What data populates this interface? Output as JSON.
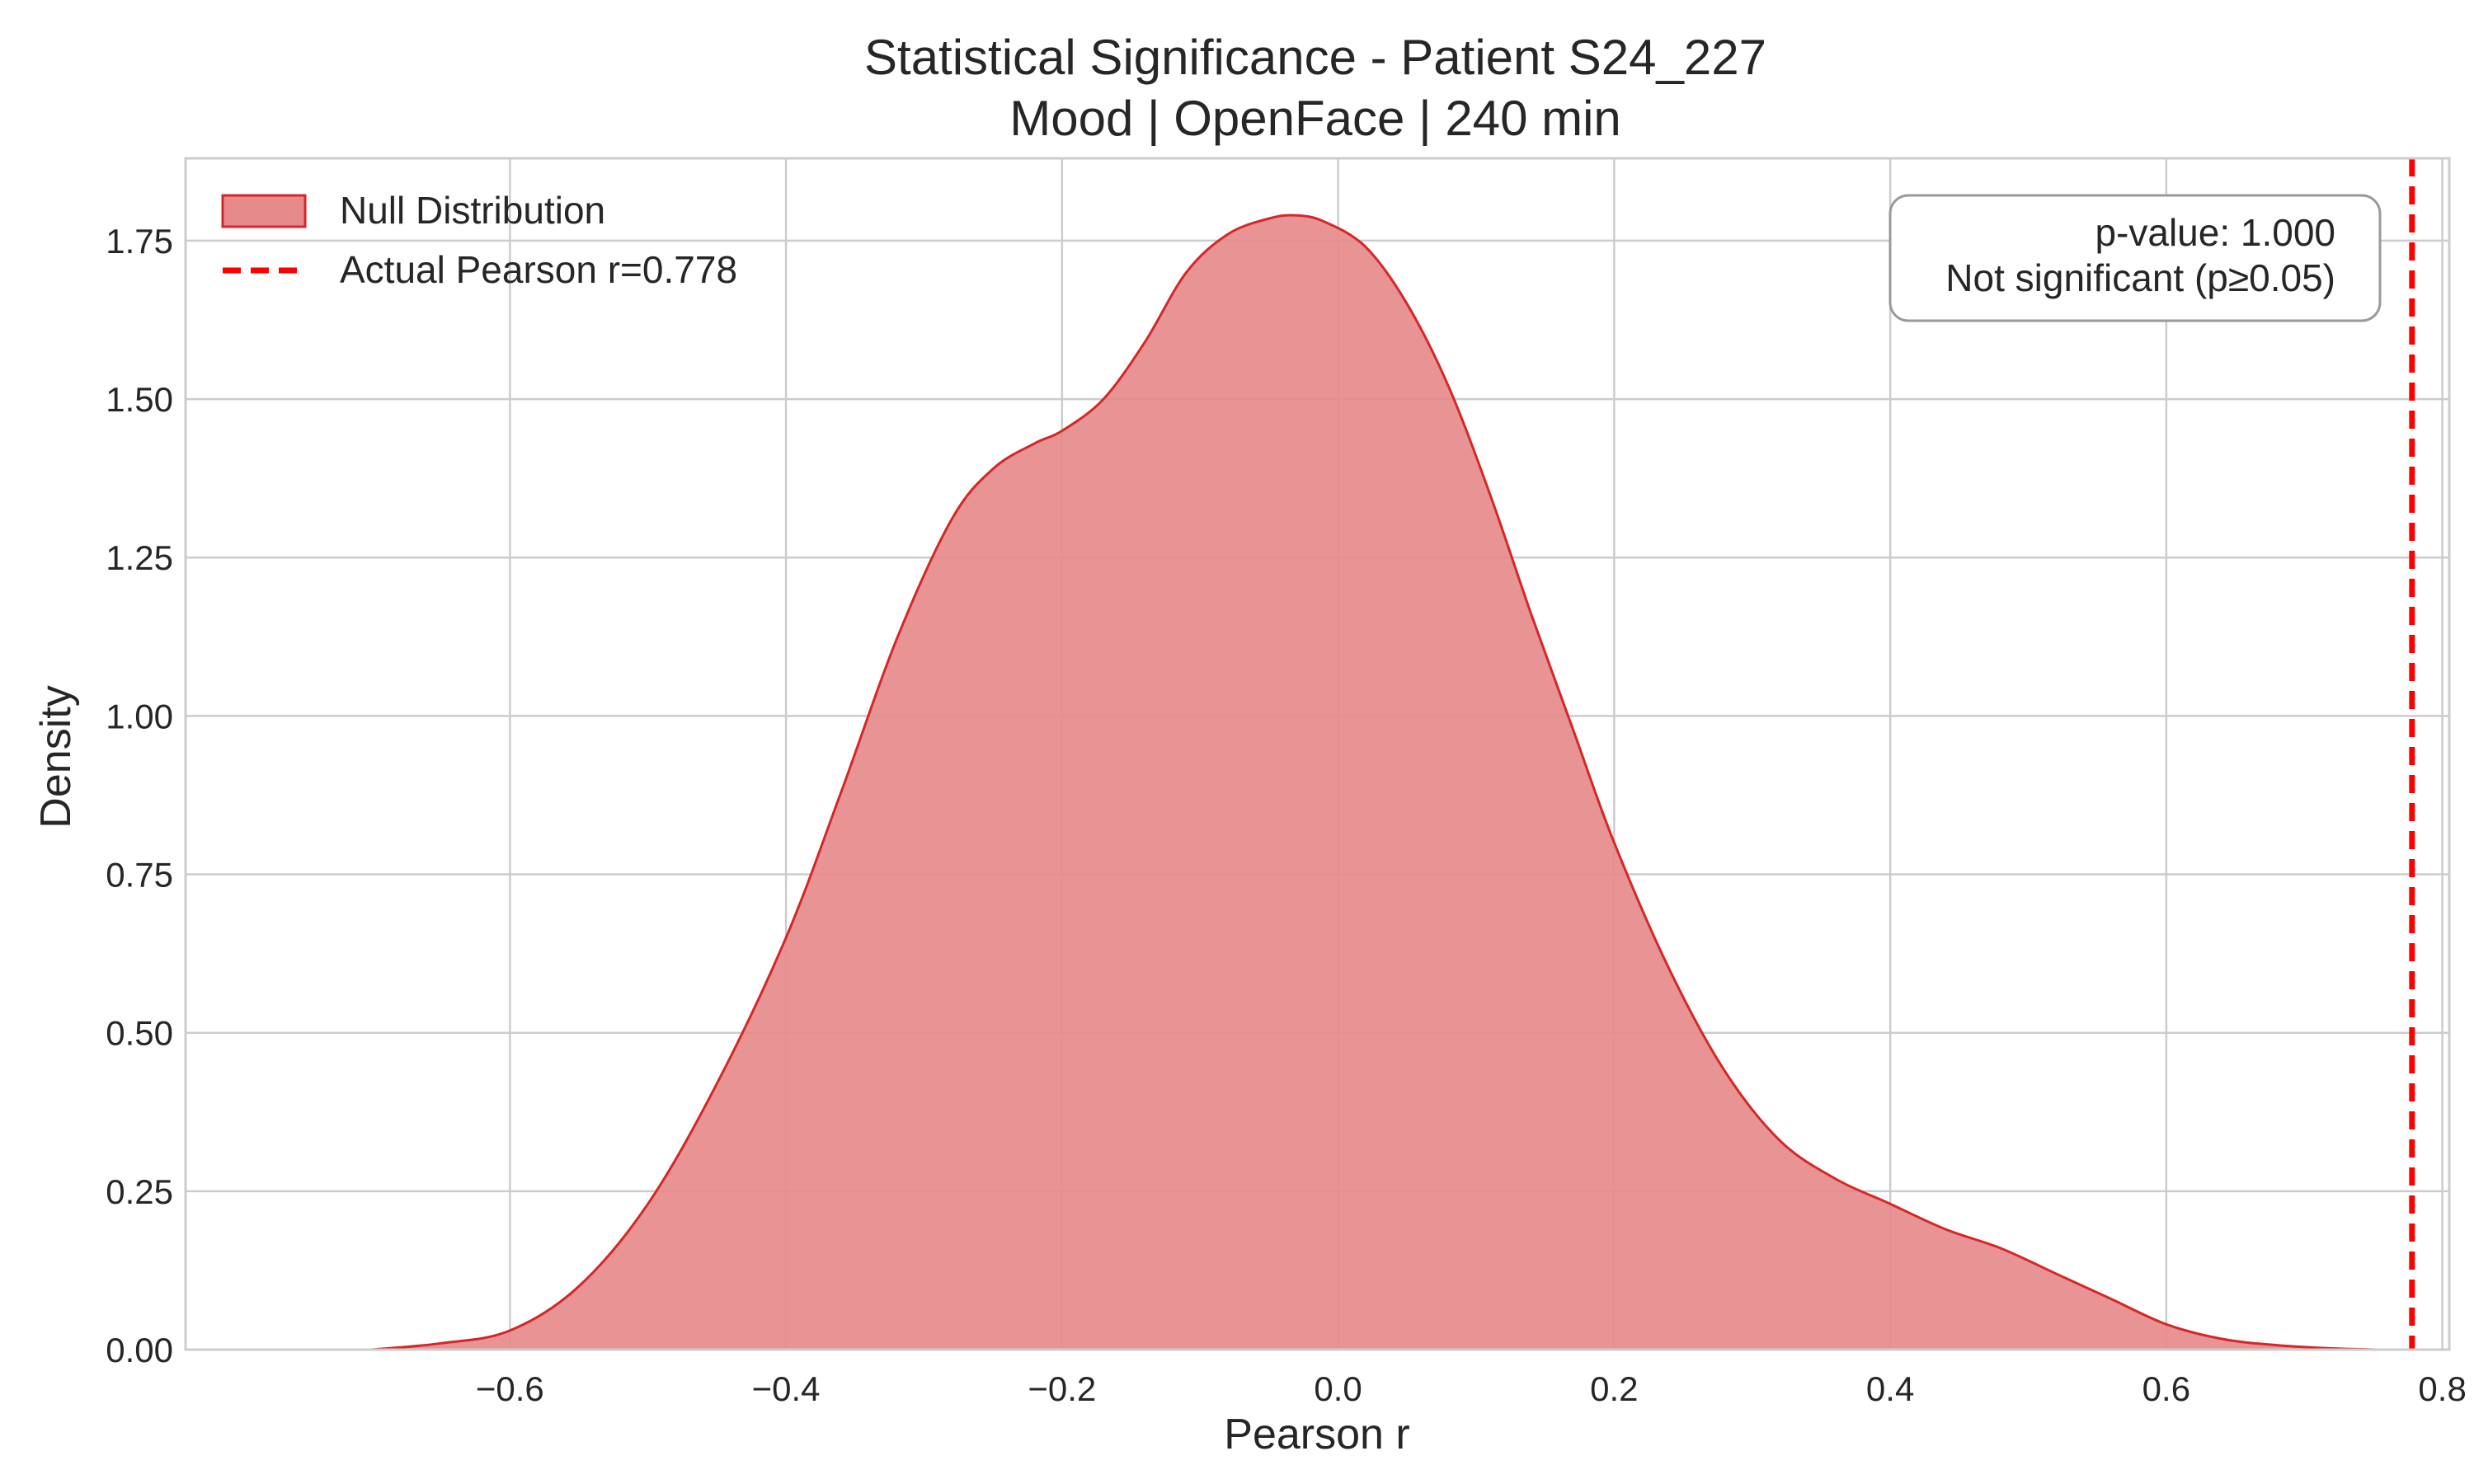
{
  "chart_data": {
    "type": "area",
    "title": "Statistical Significance - Patient S24_227",
    "subtitle": "Mood | OpenFace | 240 min",
    "xlabel": "Pearson r",
    "ylabel": "Density",
    "xlim": [
      -0.835,
      0.805
    ],
    "ylim": [
      0,
      1.88
    ],
    "xticks": [
      -0.6,
      -0.4,
      -0.2,
      0.0,
      0.2,
      0.4,
      0.6,
      0.8
    ],
    "xtick_labels": [
      "−0.6",
      "−0.4",
      "−0.2",
      "0.0",
      "0.2",
      "0.4",
      "0.6",
      "0.8"
    ],
    "yticks": [
      0.0,
      0.25,
      0.5,
      0.75,
      1.0,
      1.25,
      1.5,
      1.75
    ],
    "ytick_labels": [
      "0.00",
      "0.25",
      "0.50",
      "0.75",
      "1.00",
      "1.25",
      "1.50",
      "1.75"
    ],
    "grid": true,
    "legend_position": "top-left",
    "series": [
      {
        "name": "Null Distribution",
        "kind": "kde-fill",
        "color": "#d62728",
        "fill_color": "#e68a8b",
        "x": [
          -0.7,
          -0.65,
          -0.6,
          -0.55,
          -0.5,
          -0.45,
          -0.4,
          -0.36,
          -0.32,
          -0.28,
          -0.25,
          -0.22,
          -0.2,
          -0.17,
          -0.14,
          -0.11,
          -0.08,
          -0.05,
          -0.03,
          -0.01,
          0.02,
          0.05,
          0.08,
          0.11,
          0.14,
          0.17,
          0.2,
          0.24,
          0.28,
          0.32,
          0.36,
          0.4,
          0.44,
          0.48,
          0.52,
          0.56,
          0.6,
          0.64,
          0.68,
          0.72,
          0.755
        ],
        "y": [
          0.0,
          0.01,
          0.03,
          0.1,
          0.23,
          0.42,
          0.65,
          0.88,
          1.12,
          1.31,
          1.39,
          1.43,
          1.45,
          1.5,
          1.59,
          1.7,
          1.76,
          1.785,
          1.79,
          1.78,
          1.74,
          1.65,
          1.52,
          1.35,
          1.16,
          0.98,
          0.8,
          0.6,
          0.44,
          0.33,
          0.27,
          0.23,
          0.19,
          0.16,
          0.12,
          0.08,
          0.04,
          0.017,
          0.007,
          0.002,
          0.0
        ]
      },
      {
        "name": "Actual Pearson r=0.778",
        "kind": "vline",
        "color": "#ff0000",
        "x": 0.778
      }
    ],
    "annotation": {
      "line1": "p-value: 1.000",
      "line2": "Not significant (p≥0.05)"
    }
  }
}
